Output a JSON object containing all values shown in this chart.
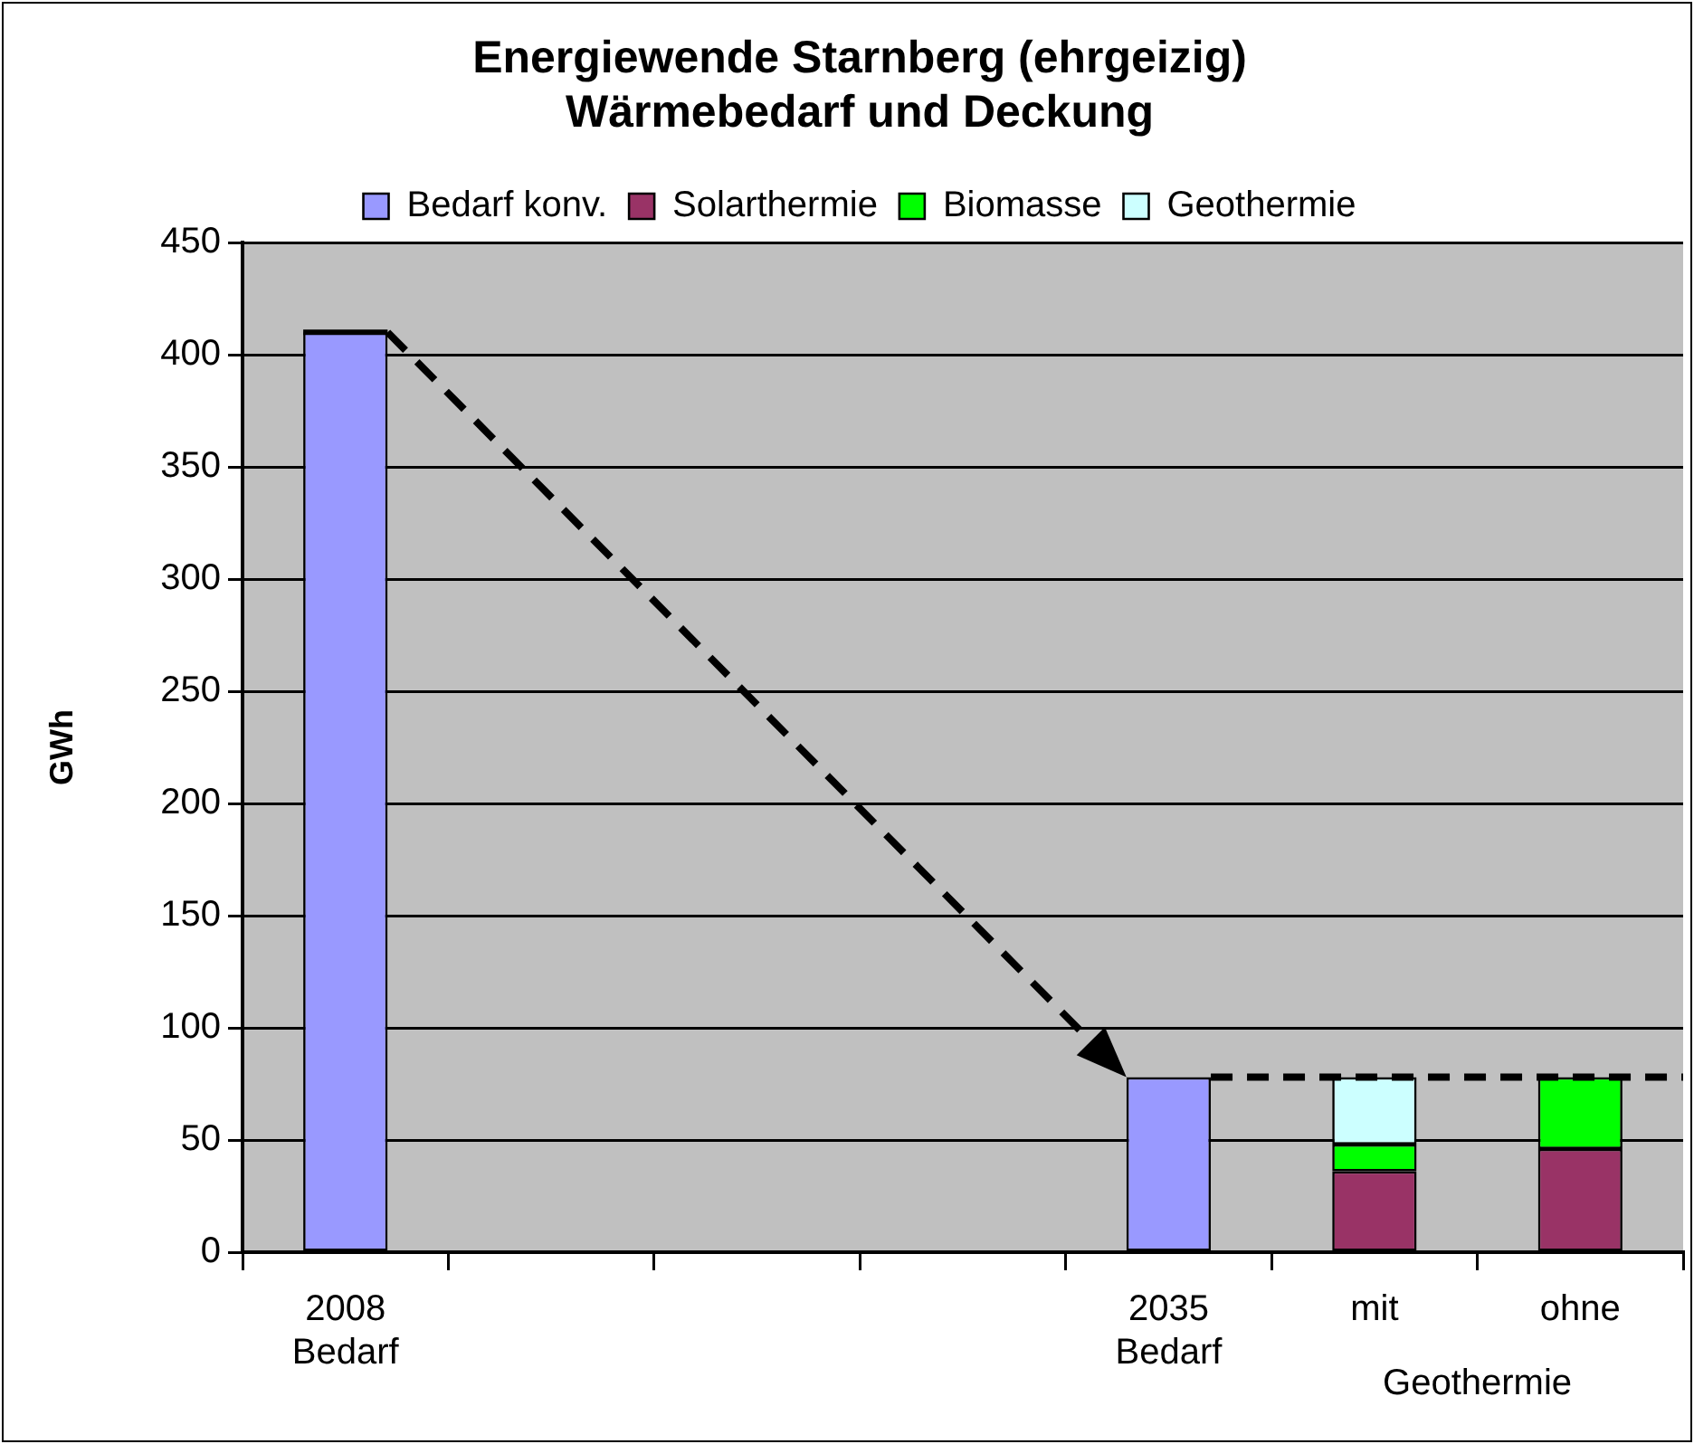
{
  "chart_data": {
    "type": "bar",
    "title": [
      "Energiewende Starnberg (ehrgeizig)",
      "Wärmebedarf und Deckung"
    ],
    "ylabel": "GWh",
    "categories": [
      "2008 Bedarf",
      null,
      null,
      null,
      "2035 Bedarf",
      "mit",
      "ohne"
    ],
    "series": [
      {
        "name": "Bedarf konv.",
        "color": "#9999ff",
        "values": [
          410,
          null,
          null,
          null,
          78,
          null,
          null
        ]
      },
      {
        "name": "Solarthermie",
        "color": "#993366",
        "values": [
          null,
          null,
          null,
          null,
          null,
          36,
          46
        ]
      },
      {
        "name": "Biomasse",
        "color": "#00ff00",
        "values": [
          null,
          null,
          null,
          null,
          null,
          12,
          32
        ]
      },
      {
        "name": "Geothermie",
        "color": "#ccffff",
        "values": [
          null,
          null,
          null,
          null,
          null,
          30,
          null
        ]
      }
    ],
    "stacked": true,
    "ylim": [
      0,
      450
    ],
    "yticks": [
      0,
      50,
      100,
      150,
      200,
      250,
      300,
      350,
      400,
      450
    ],
    "grid": "y",
    "legend": "top",
    "ref_lines": [
      {
        "axis": "y",
        "value": 78,
        "line_style": "dashed"
      }
    ],
    "annotations": [
      "Geothermie"
    ]
  }
}
